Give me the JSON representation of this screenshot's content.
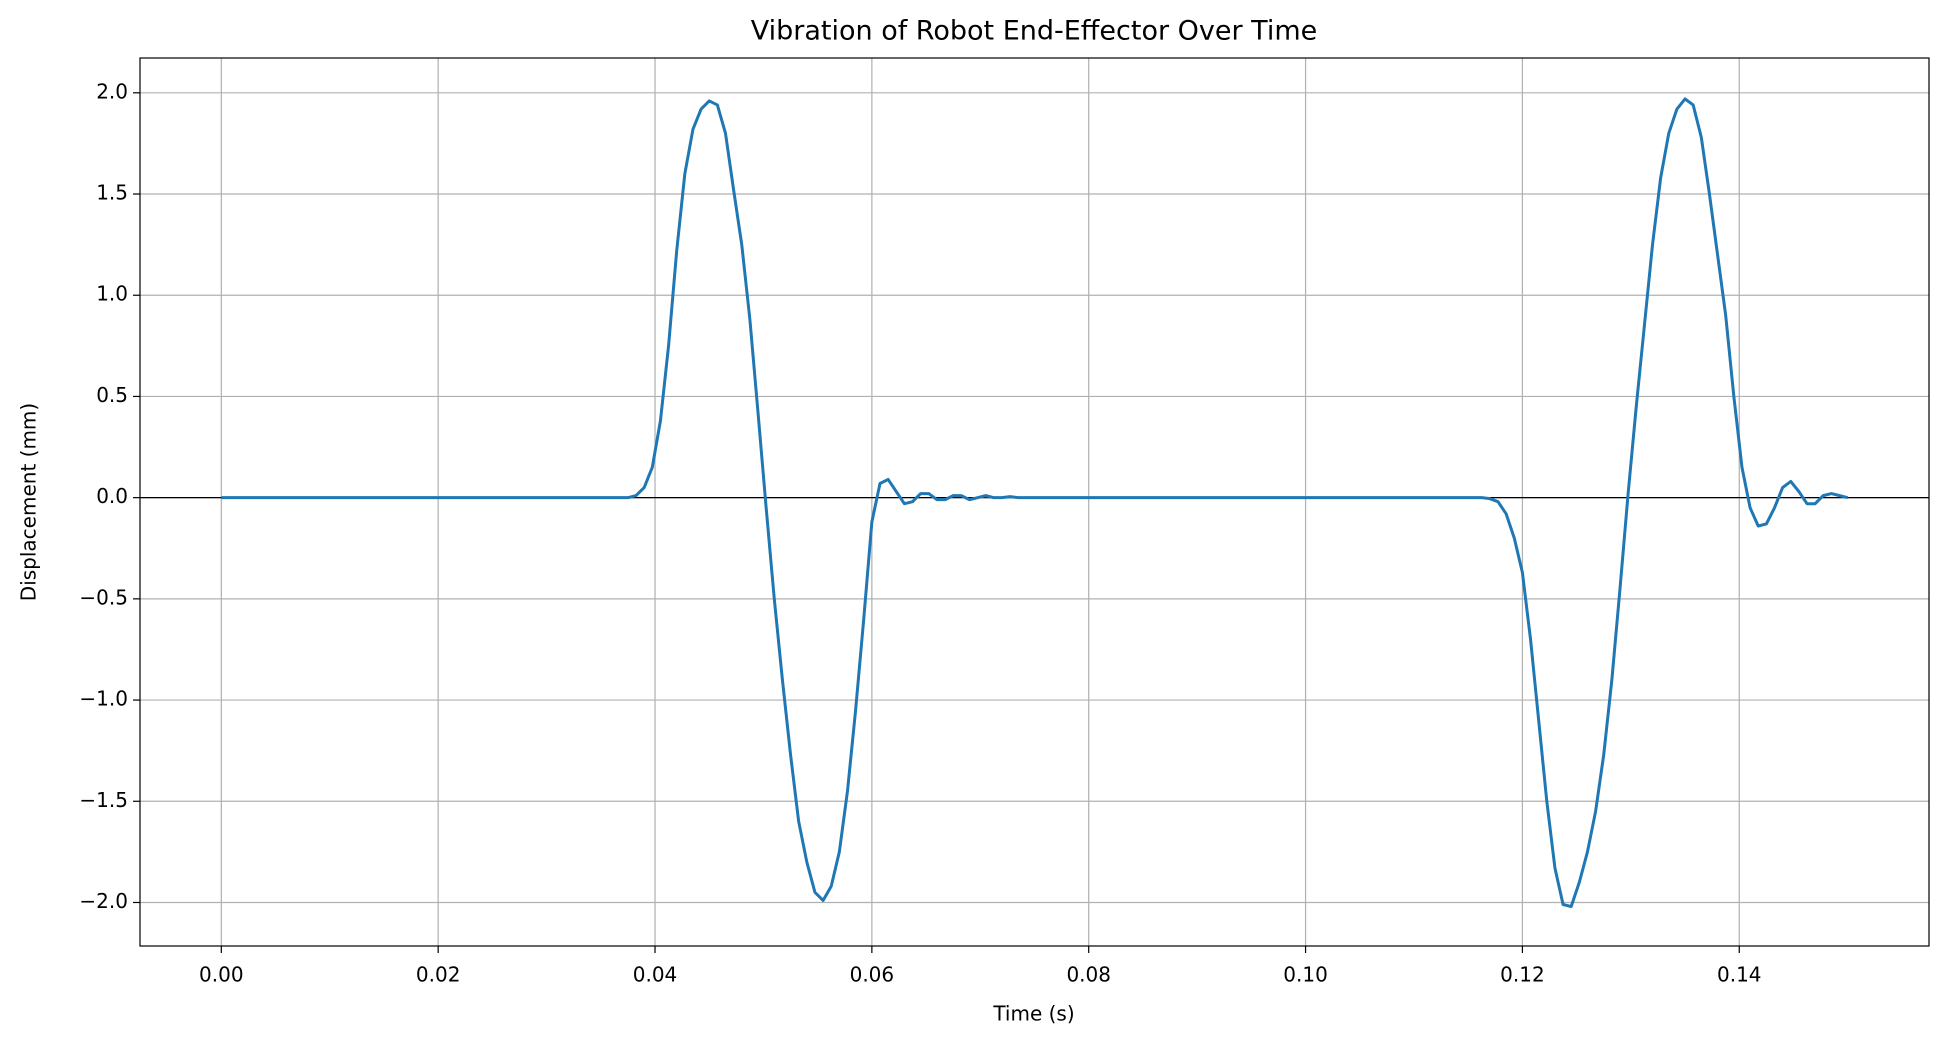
{
  "chart_data": {
    "type": "line",
    "title": "Vibration of Robot End-Effector Over Time",
    "x_label": "Time (s)",
    "y_label": "Displacement (mm)",
    "grid": true,
    "axhline": 0,
    "xlim": [
      -0.0075,
      0.1575
    ],
    "ylim": [
      -2.215,
      2.172
    ],
    "xticks": [
      {
        "value": 0,
        "label": "0.00"
      },
      {
        "value": 0.02,
        "label": "0.02"
      },
      {
        "value": 0.04,
        "label": "0.04"
      },
      {
        "value": 0.06,
        "label": "0.06"
      },
      {
        "value": 0.08,
        "label": "0.08"
      },
      {
        "value": 0.1,
        "label": "0.10"
      },
      {
        "value": 0.12,
        "label": "0.12"
      },
      {
        "value": 0.14,
        "label": "0.14"
      }
    ],
    "yticks": [
      {
        "value": -2,
        "label": "−2.0"
      },
      {
        "value": -1.5,
        "label": "−1.5"
      },
      {
        "value": -1,
        "label": "−1.0"
      },
      {
        "value": -0.5,
        "label": "−0.5"
      },
      {
        "value": 0,
        "label": "0.0"
      },
      {
        "value": 0.5,
        "label": "0.5"
      },
      {
        "value": 1,
        "label": "1.0"
      },
      {
        "value": 1.5,
        "label": "1.5"
      },
      {
        "value": 2,
        "label": "2.0"
      }
    ],
    "x": [
      0,
      0.036,
      0.0375,
      0.03825,
      0.039,
      0.03975,
      0.0405,
      0.04125,
      0.042,
      0.04275,
      0.0435,
      0.04425,
      0.045,
      0.04575,
      0.0465,
      0.04725,
      0.048,
      0.04875,
      0.0495,
      0.05025,
      0.051,
      0.05175,
      0.0525,
      0.05325,
      0.054,
      0.05475,
      0.0555,
      0.05625,
      0.057,
      0.05775,
      0.0585,
      0.05925,
      0.06,
      0.06075,
      0.0615,
      0.06225,
      0.063,
      0.06375,
      0.0645,
      0.06525,
      0.066,
      0.06675,
      0.0675,
      0.06825,
      0.069,
      0.06975,
      0.0705,
      0.07125,
      0.072,
      0.07275,
      0.0735,
      0.075,
      0.11625,
      0.117,
      0.11775,
      0.1185,
      0.11925,
      0.12,
      0.12075,
      0.1215,
      0.12225,
      0.123,
      0.12375,
      0.1245,
      0.12525,
      0.126,
      0.12675,
      0.1275,
      0.12825,
      0.129,
      0.12975,
      0.1305,
      0.13125,
      0.132,
      0.13275,
      0.1335,
      0.13425,
      0.135,
      0.13575,
      0.1365,
      0.13725,
      0.138,
      0.13875,
      0.1395,
      0.14025,
      0.141,
      0.14175,
      0.1425,
      0.14325,
      0.144,
      0.14475,
      0.1455,
      0.14625,
      0.147,
      0.14775,
      0.1485,
      0.14925,
      0.15
    ],
    "series": [
      {
        "color": "#1f77b4",
        "values": [
          0,
          0,
          0,
          0.01,
          0.05,
          0.15,
          0.38,
          0.75,
          1.22,
          1.6,
          1.82,
          1.92,
          1.96,
          1.94,
          1.8,
          1.52,
          1.25,
          0.88,
          0.42,
          -0.05,
          -0.5,
          -0.9,
          -1.27,
          -1.6,
          -1.8,
          -1.95,
          -1.99,
          -1.92,
          -1.75,
          -1.45,
          -1.05,
          -0.6,
          -0.12,
          0.07,
          0.09,
          0.03,
          -0.03,
          -0.02,
          0.02,
          0.02,
          -0.01,
          -0.01,
          0.01,
          0.01,
          -0.01,
          0,
          0.01,
          0,
          0,
          0.005,
          0,
          0,
          0,
          -0.005,
          -0.02,
          -0.08,
          -0.2,
          -0.37,
          -0.7,
          -1.1,
          -1.5,
          -1.83,
          -2.01,
          -2.02,
          -1.9,
          -1.75,
          -1.55,
          -1.27,
          -0.9,
          -0.45,
          0.02,
          0.45,
          0.85,
          1.25,
          1.58,
          1.8,
          1.92,
          1.97,
          1.94,
          1.78,
          1.5,
          1.2,
          0.9,
          0.5,
          0.15,
          -0.05,
          -0.14,
          -0.13,
          -0.05,
          0.05,
          0.08,
          0.03,
          -0.03,
          -0.03,
          0.01,
          0.02,
          0.01,
          0
        ]
      }
    ]
  }
}
